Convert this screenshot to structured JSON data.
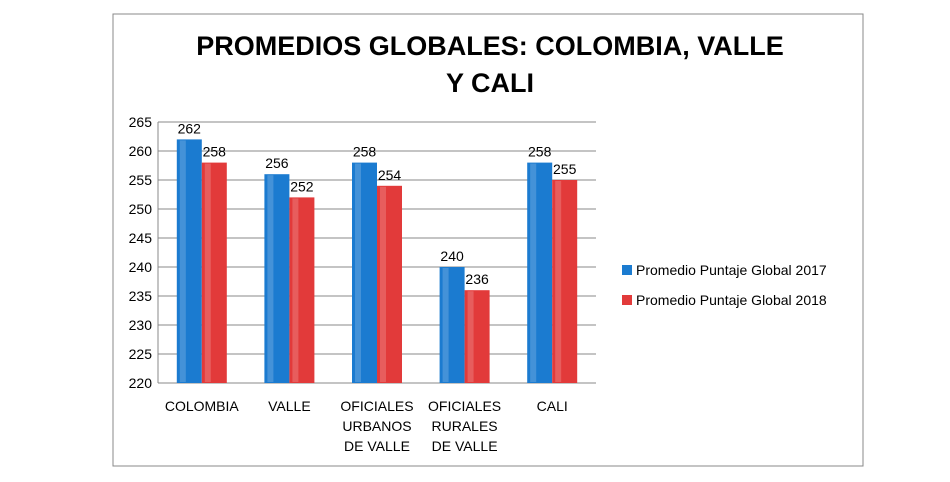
{
  "chart_data": {
    "type": "bar",
    "title": "PROMEDIOS GLOBALES: COLOMBIA, VALLE Y CALI",
    "categories": [
      "COLOMBIA",
      "VALLE",
      "OFICIALES URBANOS DE VALLE",
      "OFICIALES RURALES DE VALLE",
      "CALI"
    ],
    "series": [
      {
        "name": "Promedio Puntaje Global 2017",
        "color": "#1b7bd0",
        "values": [
          262,
          256,
          258,
          240,
          258
        ]
      },
      {
        "name": "Promedio Puntaje Global 2018",
        "color": "#e23a3a",
        "values": [
          258,
          252,
          254,
          236,
          255
        ]
      }
    ],
    "ylim": [
      220,
      265
    ],
    "yticks": [
      220,
      225,
      230,
      235,
      240,
      245,
      250,
      255,
      260,
      265
    ],
    "grid": true,
    "legend": "right"
  }
}
